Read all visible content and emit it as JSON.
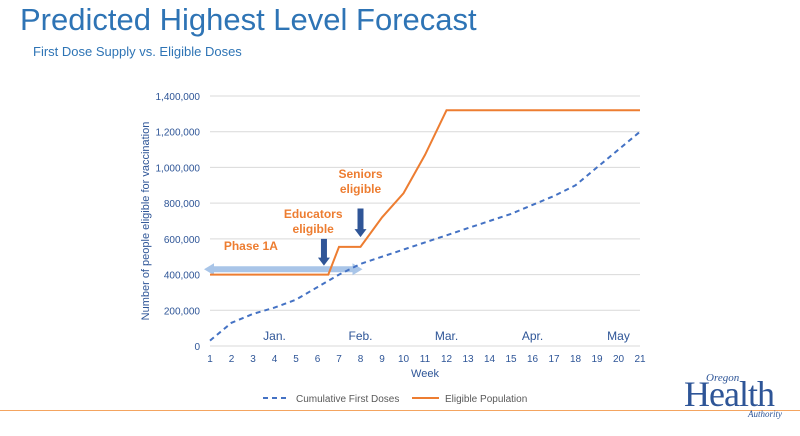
{
  "page": {
    "title": "Predicted Highest Level Forecast",
    "subtitle": "First Dose Supply vs. Eligible Doses"
  },
  "logo": {
    "top": "Oregon",
    "main": "Health",
    "bottom": "Authority"
  },
  "colors": {
    "title": "#2e74b5",
    "axis_text": "#2e5597",
    "orange": "#ed7d31",
    "blue": "#4472c4",
    "arrow": "#2f5597",
    "phase_band": "#a9c5e8"
  },
  "chart_data": {
    "type": "line",
    "xlabel": "Week",
    "ylabel": "Number of people eligible for vaccination",
    "x": [
      1,
      2,
      3,
      4,
      5,
      6,
      7,
      8,
      9,
      10,
      11,
      12,
      13,
      14,
      15,
      16,
      17,
      18,
      19,
      20,
      21
    ],
    "ylim": [
      0,
      1400000
    ],
    "yticks": [
      "0",
      "200,000",
      "400,000",
      "600,000",
      "800,000",
      "1,000,000",
      "1,200,000",
      "1,400,000"
    ],
    "ytick_values": [
      0,
      200000,
      400000,
      600000,
      800000,
      1000000,
      1200000,
      1400000
    ],
    "grid": true,
    "month_labels": [
      {
        "label": "Jan.",
        "x": 4
      },
      {
        "label": "Feb.",
        "x": 8
      },
      {
        "label": "Mar.",
        "x": 12
      },
      {
        "label": "Apr.",
        "x": 16
      },
      {
        "label": "May",
        "x": 20
      }
    ],
    "series": [
      {
        "name": "Cumulative First Doses",
        "style": "dashed",
        "color": "#4472c4",
        "points": [
          [
            1,
            30000
          ],
          [
            2,
            130000
          ],
          [
            3,
            180000
          ],
          [
            4,
            215000
          ],
          [
            5,
            260000
          ],
          [
            6,
            330000
          ],
          [
            7,
            400000
          ],
          [
            8,
            460000
          ],
          [
            9,
            500000
          ],
          [
            10,
            540000
          ],
          [
            11,
            580000
          ],
          [
            12,
            620000
          ],
          [
            13,
            660000
          ],
          [
            14,
            700000
          ],
          [
            15,
            740000
          ],
          [
            16,
            790000
          ],
          [
            17,
            840000
          ],
          [
            18,
            900000
          ],
          [
            19,
            1000000
          ],
          [
            20,
            1100000
          ],
          [
            21,
            1200000
          ]
        ]
      },
      {
        "name": "Eligible Population",
        "style": "solid",
        "color": "#ed7d31",
        "points": [
          [
            1,
            400000
          ],
          [
            6.5,
            400000
          ],
          [
            7,
            555000
          ],
          [
            8,
            555000
          ],
          [
            9,
            720000
          ],
          [
            10,
            855000
          ],
          [
            11,
            1070000
          ],
          [
            12,
            1320000
          ],
          [
            21,
            1320000
          ]
        ]
      }
    ],
    "legend": "bottom",
    "annotations": {
      "phase": {
        "text": "Phase 1A",
        "x_from": 1,
        "x_to": 8,
        "y": 430000
      },
      "educators": {
        "lines": [
          "Educators",
          "eligible"
        ],
        "arrow_x": 6.3,
        "arrow_from": 600000,
        "arrow_to": 450000
      },
      "seniors": {
        "lines": [
          "Seniors",
          "eligible"
        ],
        "arrow_x": 8,
        "arrow_from": 770000,
        "arrow_to": 610000
      }
    }
  }
}
